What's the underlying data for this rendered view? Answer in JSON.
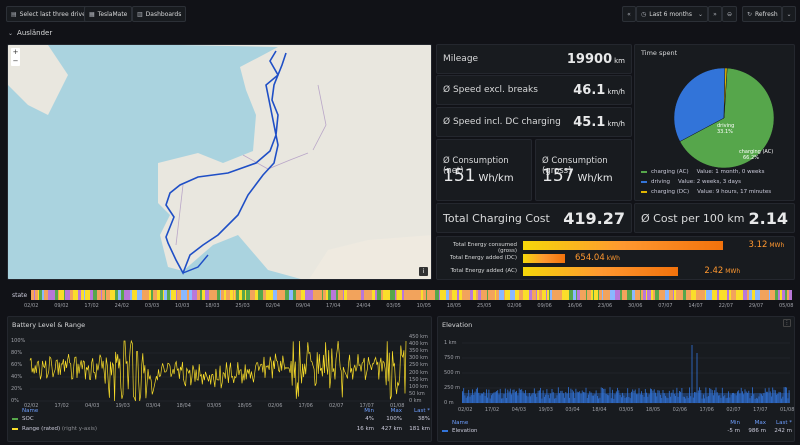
{
  "toolbar": {
    "btn1": "Select last three drives",
    "btn2": "TeslaMate",
    "btn3": "Dashboards",
    "time_range": "Last 6 months",
    "refresh": "Refresh"
  },
  "row": {
    "title": "Ausländer"
  },
  "stats": {
    "mileage": {
      "label": "Mileage",
      "value": "19900",
      "unit": "km"
    },
    "speed_excl": {
      "label": "Ø Speed excl. breaks",
      "value": "46.1",
      "unit": "km/h"
    },
    "speed_incl": {
      "label": "Ø Speed incl. DC charging",
      "value": "45.1",
      "unit": "km/h"
    },
    "cons_net": {
      "label": "Ø Consumption (net)",
      "value": "151",
      "unit": "Wh/km"
    },
    "cons_gross": {
      "label": "Ø Consumption (gross)",
      "value": "157",
      "unit": "Wh/km"
    },
    "charging_cost": {
      "label": "Total Charging Cost",
      "value": "419.27"
    },
    "cost_100": {
      "label": "Ø Cost per 100 km",
      "value": "2.14"
    }
  },
  "time_spent": {
    "title": "Time spent",
    "slices": [
      {
        "name": "charging (AC)",
        "value_text": "Value: 1 month, 0 weeks",
        "pct": 66.2,
        "pct_label": "66.2%",
        "color": "#56a64b"
      },
      {
        "name": "driving",
        "value_text": "Value: 2 weeks, 3 days",
        "pct": 33.1,
        "pct_label": "33.1%",
        "color": "#3274d9"
      },
      {
        "name": "charging (DC)",
        "value_text": "Value: 9 hours, 17 minutes",
        "pct": 0.7,
        "pct_label": "",
        "color": "#e0b400"
      }
    ]
  },
  "energy": {
    "rows": [
      {
        "label": "Total Energy consumed (gross)",
        "value": "3.12",
        "unit": "MWh",
        "frac": 0.95
      },
      {
        "label": "Total Energy added (DC)",
        "value": "654.04",
        "unit": "kWh",
        "frac": 0.2
      },
      {
        "label": "Total Energy added (AC)",
        "value": "2.42",
        "unit": "MWh",
        "frac": 0.74
      }
    ]
  },
  "state": {
    "label": "state",
    "ticks": [
      "02/02",
      "09/02",
      "17/02",
      "24/02",
      "03/03",
      "10/03",
      "18/03",
      "25/03",
      "02/04",
      "09/04",
      "17/04",
      "24/04",
      "03/05",
      "10/05",
      "18/05",
      "25/05",
      "02/06",
      "09/06",
      "16/06",
      "23/06",
      "30/06",
      "07/07",
      "14/07",
      "22/07",
      "29/07",
      "05/08"
    ]
  },
  "battery": {
    "title": "Battery Level & Range",
    "y_left": [
      "100%",
      "80%",
      "60%",
      "40%",
      "20%",
      "0%"
    ],
    "y_right": [
      "450 km",
      "400 km",
      "350 km",
      "300 km",
      "250 km",
      "200 km",
      "150 km",
      "100 km",
      "50 km",
      "0 km"
    ],
    "x_ticks": [
      "02/02",
      "17/02",
      "04/03",
      "19/03",
      "03/04",
      "18/04",
      "03/05",
      "18/05",
      "02/06",
      "17/06",
      "02/07",
      "17/07",
      "01/08"
    ],
    "legend_header": {
      "name": "Name",
      "min": "Min",
      "max": "Max",
      "last": "Last *"
    },
    "series": [
      {
        "name": "SOC",
        "suffix": "",
        "min": "4%",
        "max": "100%",
        "last": "38%",
        "color": "#56a64b"
      },
      {
        "name": "Range (rated)",
        "suffix": "(right y-axis)",
        "min": "16 km",
        "max": "427 km",
        "last": "181 km",
        "color": "#fade2a"
      }
    ]
  },
  "elevation": {
    "title": "Elevation",
    "y_ticks": [
      "1 km",
      "750 m",
      "500 m",
      "250 m",
      "0 m"
    ],
    "x_ticks": [
      "02/02",
      "17/02",
      "04/03",
      "19/03",
      "03/04",
      "18/04",
      "03/05",
      "18/05",
      "02/06",
      "17/06",
      "02/07",
      "17/07",
      "01/08"
    ],
    "legend_header": {
      "name": "Name",
      "min": "Min",
      "max": "Max",
      "last": "Last *"
    },
    "series": [
      {
        "name": "Elevation",
        "min": "-5 m",
        "max": "986 m",
        "last": "242 m",
        "color": "#3274d9"
      }
    ]
  }
}
